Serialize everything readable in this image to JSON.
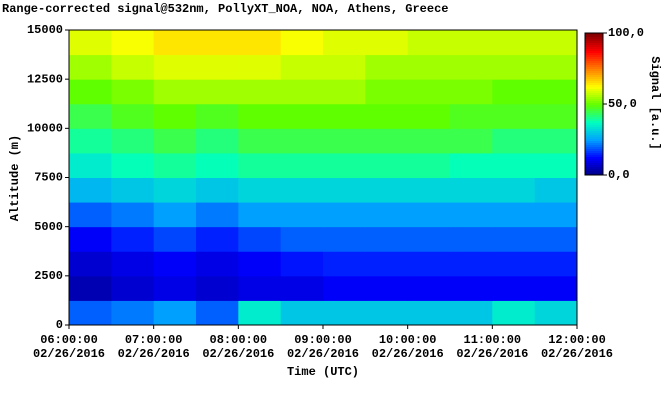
{
  "chart_data": {
    "type": "heatmap",
    "title": "Range-corrected signal@532nm, PollyXT_NOA, NOA, Athens, Greece",
    "x_label": "Time (UTC)",
    "y_label": "Altitude (m)",
    "colorbar_label": "Signal [a.u.]",
    "xbins": [
      6,
      6.5,
      7,
      7.5,
      8,
      8.5,
      9,
      9.5,
      10,
      10.5,
      11,
      11.5,
      12
    ],
    "ybins": [
      0,
      1250,
      2500,
      3750,
      5000,
      6250,
      7500,
      8750,
      10000,
      11250,
      12500,
      13750,
      15000
    ],
    "values": [
      [
        20,
        22,
        25,
        20,
        35,
        30,
        30,
        30,
        30,
        30,
        35,
        32
      ],
      [
        5,
        8,
        10,
        8,
        10,
        10,
        12,
        12,
        12,
        12,
        12,
        12
      ],
      [
        8,
        10,
        12,
        10,
        12,
        14,
        15,
        15,
        15,
        15,
        15,
        15
      ],
      [
        12,
        15,
        18,
        15,
        18,
        20,
        20,
        20,
        20,
        20,
        20,
        20
      ],
      [
        20,
        22,
        25,
        22,
        25,
        25,
        25,
        25,
        25,
        25,
        25,
        25
      ],
      [
        28,
        30,
        32,
        30,
        32,
        32,
        32,
        32,
        32,
        32,
        32,
        30
      ],
      [
        35,
        38,
        40,
        38,
        40,
        40,
        40,
        40,
        40,
        38,
        38,
        38
      ],
      [
        40,
        42,
        45,
        42,
        45,
        45,
        45,
        45,
        45,
        45,
        42,
        42
      ],
      [
        45,
        48,
        50,
        48,
        50,
        50,
        50,
        50,
        50,
        48,
        48,
        48
      ],
      [
        50,
        52,
        55,
        55,
        55,
        55,
        55,
        52,
        52,
        52,
        50,
        50
      ],
      [
        55,
        58,
        60,
        60,
        60,
        58,
        58,
        55,
        55,
        55,
        55,
        55
      ],
      [
        60,
        62,
        65,
        65,
        65,
        62,
        60,
        60,
        58,
        58,
        58,
        58
      ]
    ],
    "xlim": [
      6,
      12
    ],
    "xticks": [
      {
        "value": 6,
        "label": "06:00:00",
        "date": "02/26/2016"
      },
      {
        "value": 7,
        "label": "07:00:00",
        "date": "02/26/2016"
      },
      {
        "value": 8,
        "label": "08:00:00",
        "date": "02/26/2016"
      },
      {
        "value": 9,
        "label": "09:00:00",
        "date": "02/26/2016"
      },
      {
        "value": 10,
        "label": "10:00:00",
        "date": "02/26/2016"
      },
      {
        "value": 11,
        "label": "11:00:00",
        "date": "02/26/2016"
      },
      {
        "value": 12,
        "label": "12:00:00",
        "date": "02/26/2016"
      }
    ],
    "ylim": [
      0,
      15000
    ],
    "yticks": [
      0,
      2500,
      5000,
      7500,
      10000,
      12500,
      15000
    ],
    "zlim": [
      0,
      100
    ],
    "zticks": [
      {
        "value": 100,
        "label": "100,0"
      },
      {
        "value": 50,
        "label": "50,0"
      },
      {
        "value": 0,
        "label": "0,0"
      }
    ],
    "colormap": [
      "#000080",
      "#0000ff",
      "#00a0ff",
      "#00ffc0",
      "#60ff00",
      "#ffff00",
      "#ff8000",
      "#ff0000",
      "#800000"
    ]
  }
}
